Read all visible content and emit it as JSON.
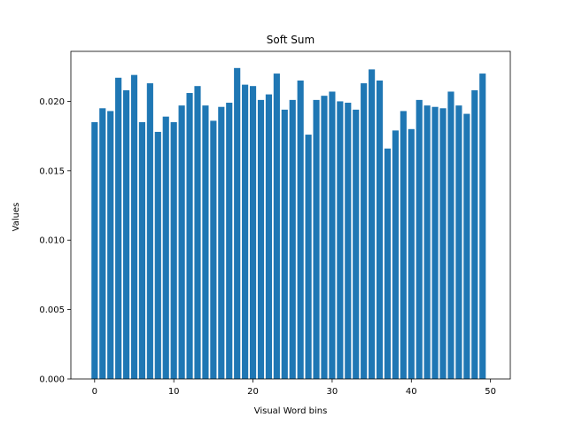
{
  "chart_data": {
    "type": "bar",
    "title": "Soft Sum",
    "xlabel": "Visual Word bins",
    "ylabel": "Values",
    "bar_color": "#1f77b4",
    "xlim": [
      -3,
      52.5
    ],
    "ylim": [
      0,
      0.0236
    ],
    "xticks": [
      0,
      10,
      20,
      30,
      40,
      50
    ],
    "yticks": [
      0.0,
      0.005,
      0.01,
      0.015,
      0.02
    ],
    "xtick_labels": [
      "0",
      "10",
      "20",
      "30",
      "40",
      "50"
    ],
    "ytick_labels": [
      "0.000",
      "0.005",
      "0.010",
      "0.015",
      "0.020"
    ],
    "bar_width": 0.8,
    "x": [
      0,
      1,
      2,
      3,
      4,
      5,
      6,
      7,
      8,
      9,
      10,
      11,
      12,
      13,
      14,
      15,
      16,
      17,
      18,
      19,
      20,
      21,
      22,
      23,
      24,
      25,
      26,
      27,
      28,
      29,
      30,
      31,
      32,
      33,
      34,
      35,
      36,
      37,
      38,
      39,
      40,
      41,
      42,
      43,
      44,
      45,
      46,
      47,
      48,
      49
    ],
    "values": [
      0.0185,
      0.0195,
      0.0193,
      0.0217,
      0.0208,
      0.0219,
      0.0185,
      0.0213,
      0.0178,
      0.0189,
      0.0185,
      0.0197,
      0.0206,
      0.0211,
      0.0197,
      0.0186,
      0.0196,
      0.0199,
      0.0224,
      0.0212,
      0.0211,
      0.0201,
      0.0205,
      0.022,
      0.0194,
      0.0201,
      0.0215,
      0.0176,
      0.0201,
      0.0204,
      0.0207,
      0.02,
      0.0199,
      0.0194,
      0.0213,
      0.0223,
      0.0215,
      0.0166,
      0.0179,
      0.0193,
      0.018,
      0.0201,
      0.0197,
      0.0196,
      0.0195,
      0.0207,
      0.0197,
      0.0191,
      0.0208,
      0.022
    ],
    "grid": false
  }
}
